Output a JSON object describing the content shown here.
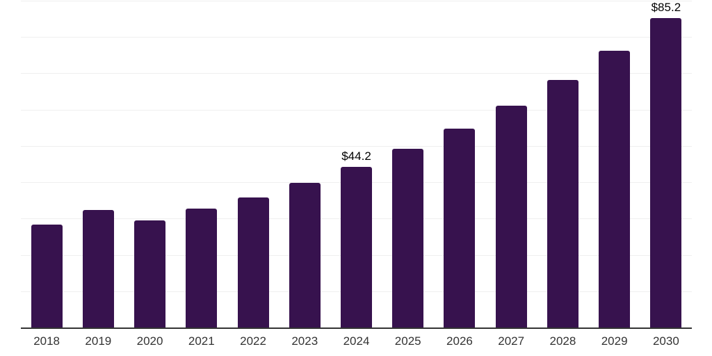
{
  "chart_data": {
    "type": "bar",
    "title": "",
    "xlabel": "",
    "ylabel": "",
    "categories": [
      "2018",
      "2019",
      "2020",
      "2021",
      "2022",
      "2023",
      "2024",
      "2025",
      "2026",
      "2027",
      "2028",
      "2029",
      "2030"
    ],
    "values": [
      28.4,
      32.3,
      29.5,
      32.7,
      35.9,
      39.9,
      44.2,
      49.3,
      54.8,
      61.1,
      68.2,
      76.2,
      85.2
    ],
    "data_labels": [
      "",
      "",
      "",
      "",
      "",
      "",
      "$44.2",
      "",
      "",
      "",
      "",
      "",
      "$85.2"
    ],
    "ylim": [
      0,
      90
    ],
    "grid_step": 10,
    "grid": "horizontal gridlines on, no y tick labels",
    "legend": "none",
    "colors": {
      "bar": "#37124e",
      "grid": "#efefef",
      "axis": "#333333",
      "tick_label": "#333333",
      "data_label": "#000000",
      "background": "#ffffff"
    }
  }
}
